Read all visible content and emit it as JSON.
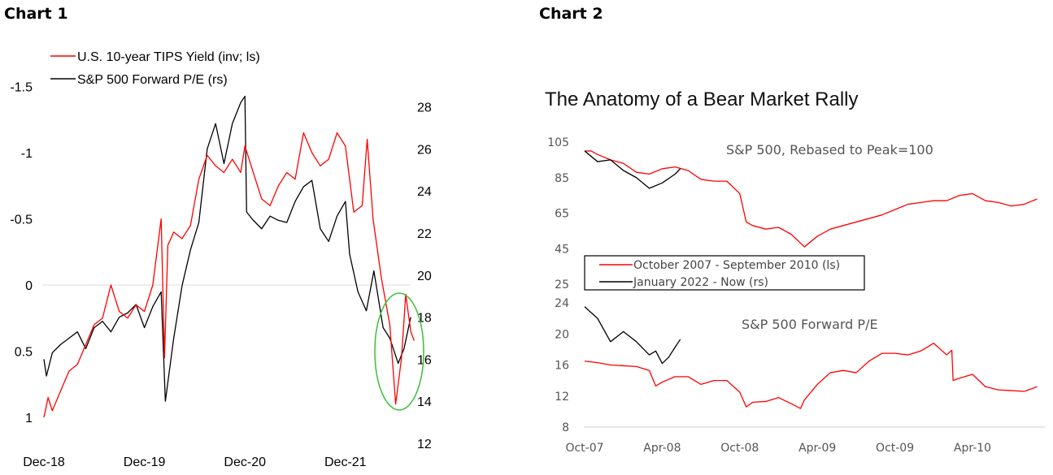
{
  "labels": {
    "chart1": "Chart 1",
    "chart2": "Chart 2"
  },
  "chart_data": [
    {
      "type": "line",
      "title": "",
      "legend_position": "top-left",
      "x_unit": "months since Dec-2018",
      "x_ticks": [
        {
          "label": "Dec-18",
          "x": 0
        },
        {
          "label": "Dec-19",
          "x": 12
        },
        {
          "label": "Dec-20",
          "x": 24
        },
        {
          "label": "Dec-21",
          "x": 36
        }
      ],
      "y_left": {
        "label": "U.S. 10-year TIPS Yield (inverted)",
        "range": [
          -1.5,
          1
        ],
        "inverted": true,
        "ticks": [
          "-1.5",
          "-1",
          "-0.5",
          "0",
          "0.5",
          "1"
        ]
      },
      "y_right": {
        "range": [
          12,
          28
        ],
        "ticks": [
          "28",
          "26",
          "24",
          "22",
          "20",
          "18",
          "16",
          "14",
          "12"
        ]
      },
      "series": [
        {
          "name": "U.S. 10-year TIPS Yield (inv; ls)",
          "axis": "left",
          "color": "#ff0000",
          "x": [
            0,
            0.5,
            1,
            2,
            3,
            4,
            5,
            6,
            7,
            8,
            9,
            10,
            11,
            12,
            13,
            14,
            14.4,
            14.8,
            15.5,
            16.5,
            17.5,
            18.5,
            19.5,
            20.5,
            21.5,
            22.5,
            23.5,
            24,
            25,
            26,
            27,
            28,
            29,
            30,
            31,
            32,
            33,
            34,
            35,
            36,
            37,
            38,
            38.6,
            39.3,
            40.3,
            41.3,
            42,
            42.7,
            43.2,
            43.8,
            44.2
          ],
          "y": [
            1.0,
            0.85,
            0.95,
            0.8,
            0.65,
            0.6,
            0.45,
            0.3,
            0.25,
            0.0,
            0.2,
            0.25,
            0.15,
            0.2,
            0.0,
            -0.5,
            0.55,
            -0.3,
            -0.4,
            -0.35,
            -0.45,
            -0.8,
            -0.98,
            -0.9,
            -0.85,
            -0.95,
            -0.85,
            -1.05,
            -0.85,
            -0.65,
            -0.6,
            -0.75,
            -0.85,
            -0.8,
            -1.15,
            -1.0,
            -0.9,
            -0.95,
            -1.15,
            -1.05,
            -0.55,
            -0.6,
            -1.1,
            -0.5,
            -0.05,
            0.3,
            0.9,
            0.55,
            0.07,
            0.35,
            0.42
          ]
        },
        {
          "name": "S&P 500 Forward P/E (rs)",
          "axis": "right",
          "color": "#000000",
          "x": [
            0,
            0.3,
            1,
            2,
            3,
            4,
            5,
            6,
            7,
            8,
            9,
            10,
            11,
            12,
            13,
            14,
            14.5,
            15,
            15.5,
            16.5,
            17.5,
            18.5,
            19.5,
            20.5,
            21.5,
            22.5,
            23.5,
            24,
            24.2,
            25,
            26,
            27,
            28,
            29,
            30,
            31,
            32,
            33,
            34,
            35,
            36,
            36.5,
            37.5,
            38.5,
            39.4,
            40.5,
            41.3,
            42.3,
            43,
            43.8
          ],
          "y": [
            16,
            15.2,
            16.3,
            16.7,
            17,
            17.3,
            16.5,
            17.5,
            17.8,
            17.3,
            18,
            18.2,
            18.6,
            17.5,
            18.5,
            19.2,
            14,
            15.5,
            17,
            19.5,
            21.2,
            22.5,
            26,
            27.2,
            25.3,
            27.2,
            28.2,
            28.5,
            23,
            22.6,
            22.2,
            22.8,
            22.6,
            22.5,
            23.5,
            24.2,
            24.5,
            22.2,
            21.6,
            22.8,
            23.5,
            21,
            19.2,
            18.3,
            20.2,
            17.5,
            17.0,
            15.8,
            16.5,
            18
          ]
        }
      ],
      "annotations": [
        "green ellipse highlighting 2022 decline"
      ]
    },
    {
      "type": "line",
      "title": "The Anatomy of a Bear Market Rally",
      "x_unit": "months since Oct-2007",
      "x_ticks": [
        {
          "label": "Oct-07",
          "x": 0
        },
        {
          "label": "Apr-08",
          "x": 6
        },
        {
          "label": "Oct-08",
          "x": 12
        },
        {
          "label": "Apr-09",
          "x": 18
        },
        {
          "label": "Oct-09",
          "x": 24
        },
        {
          "label": "Apr-10",
          "x": 30
        }
      ],
      "panels": [
        {
          "subtitle": "S&P 500, Rebased to Peak=100",
          "range": [
            25,
            105
          ],
          "ticks": [
            "105",
            "85",
            "65",
            "45",
            "25"
          ],
          "series": [
            {
              "name": "October 2007 - September 2010 (ls)",
              "color": "#ff0000",
              "x": [
                0,
                0.5,
                1,
                2,
                3,
                4,
                5,
                6,
                7,
                8,
                9,
                10,
                11,
                12,
                12.5,
                13,
                14,
                15,
                16,
                17,
                18,
                19,
                20,
                21,
                22,
                23,
                24,
                25,
                26,
                27,
                28,
                29,
                30,
                31,
                32,
                33,
                34,
                35
              ],
              "y": [
                100,
                100,
                98,
                95,
                93,
                88,
                87,
                90,
                91,
                89,
                84,
                83,
                83,
                76,
                60,
                58,
                56,
                57,
                53,
                46,
                52,
                56,
                58,
                60,
                62,
                64,
                67,
                70,
                71,
                72,
                72,
                75,
                76,
                72,
                71,
                69,
                70,
                73
              ]
            },
            {
              "name": "January 2022 - Now (rs)",
              "color": "#000000",
              "x": [
                0,
                1,
                2,
                3,
                4,
                5,
                6,
                7,
                7.4
              ],
              "y": [
                100,
                94,
                95,
                89,
                85,
                79,
                82,
                87,
                90
              ]
            }
          ]
        },
        {
          "subtitle": "S&P 500 Forward P/E",
          "range": [
            8,
            24
          ],
          "ticks": [
            "24",
            "20",
            "16",
            "12",
            "8"
          ],
          "series": [
            {
              "name": "October 2007 - September 2010",
              "color": "#ff0000",
              "x": [
                0,
                1,
                2,
                3,
                4,
                5,
                5.5,
                6,
                7,
                8,
                9,
                10,
                11,
                12,
                12.5,
                13,
                14,
                15,
                16,
                16.7,
                17,
                18,
                19,
                20,
                21,
                22,
                23,
                24,
                25,
                26,
                27,
                28,
                28.4,
                28.5,
                29,
                30,
                31,
                32,
                33,
                34,
                35
              ],
              "y": [
                16.5,
                16.3,
                16,
                15.9,
                15.8,
                15.3,
                13.3,
                13.8,
                14.5,
                14.5,
                13.5,
                14,
                14,
                12.5,
                10.6,
                11.2,
                11.3,
                11.8,
                11,
                10.4,
                11.5,
                13.5,
                15,
                15.3,
                15,
                16.5,
                17.5,
                17.5,
                17.3,
                17.8,
                18.8,
                17.3,
                17.9,
                14,
                14.3,
                14.8,
                13.2,
                12.8,
                12.7,
                12.6,
                13.2
              ]
            },
            {
              "name": "January 2022 - Now",
              "color": "#000000",
              "x": [
                0,
                1,
                2,
                3,
                4,
                5,
                5.5,
                6,
                6.5,
                7,
                7.4
              ],
              "y": [
                23.5,
                22,
                19,
                20.3,
                19,
                17.3,
                17.8,
                16.2,
                17,
                18.3,
                19.3
              ]
            }
          ]
        }
      ],
      "legend": [
        "October 2007 - September 2010 (ls)",
        "January 2022 - Now (rs)"
      ]
    }
  ]
}
